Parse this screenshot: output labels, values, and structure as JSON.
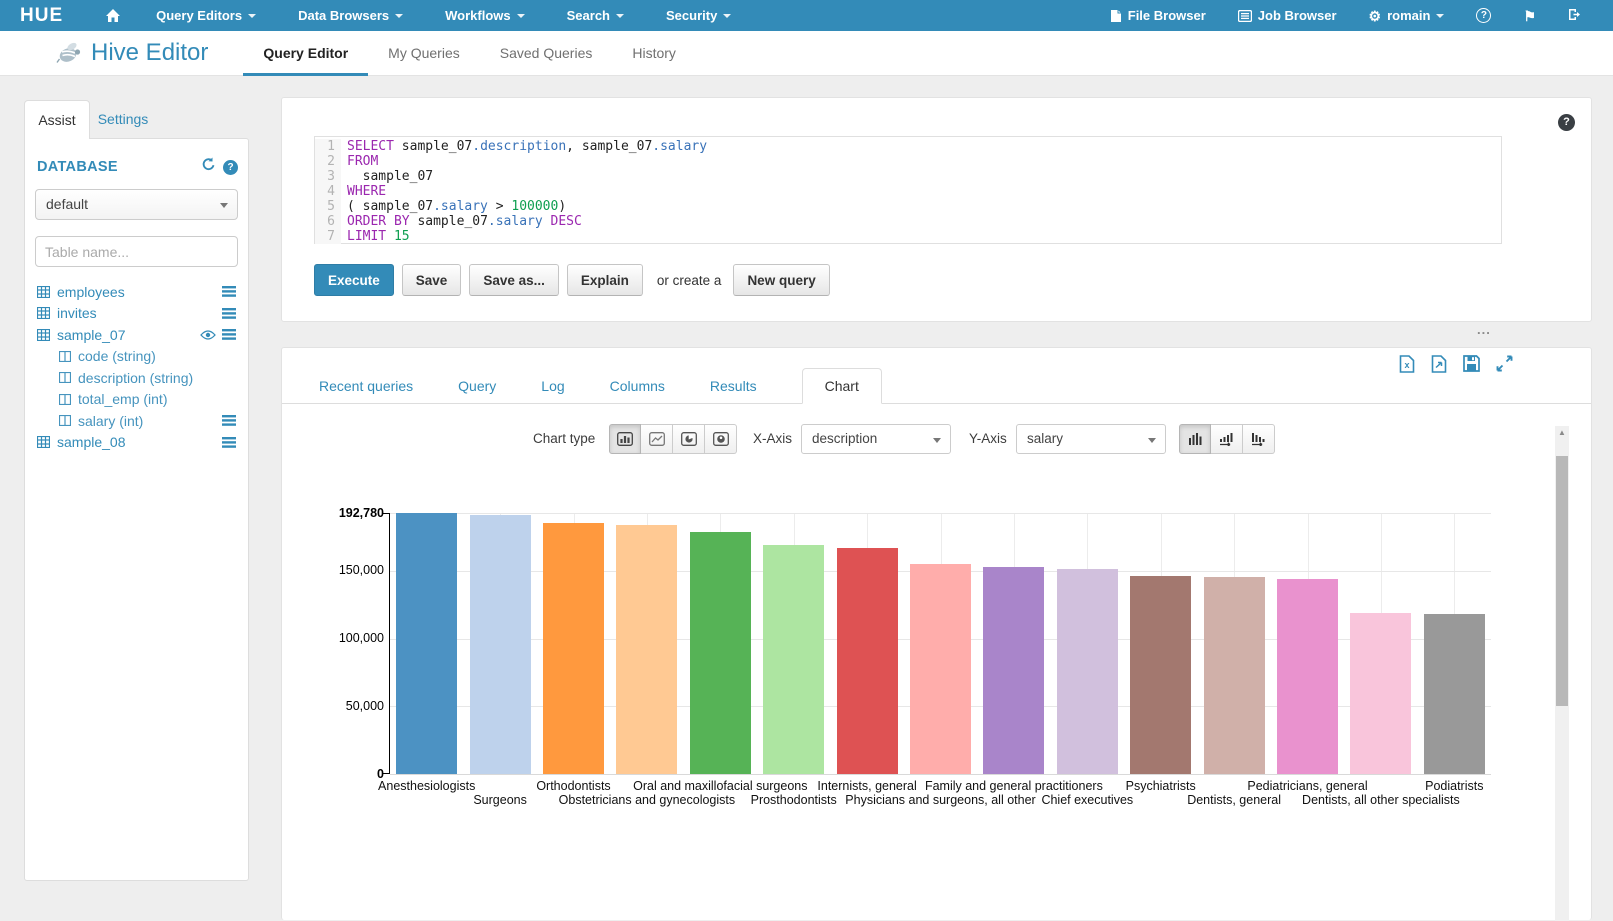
{
  "navbar": {
    "logo": "HUE",
    "menus": [
      "Query Editors",
      "Data Browsers",
      "Workflows",
      "Search",
      "Security"
    ],
    "file_browser": "File Browser",
    "job_browser": "Job Browser",
    "user": "romain"
  },
  "icons": {
    "help_glyph": "?",
    "gear_glyph": "⚙",
    "flag_glyph": "⚑",
    "scroll_up_glyph": "▲",
    "grip_glyph": "..."
  },
  "subheader": {
    "app_title": "Hive Editor",
    "tabs": [
      "Query Editor",
      "My Queries",
      "Saved Queries",
      "History"
    ],
    "active_tab": "Query Editor"
  },
  "assist": {
    "tabs": [
      "Assist",
      "Settings"
    ],
    "database_label": "DATABASE",
    "database_value": "default",
    "table_filter_placeholder": "Table name...",
    "tables": [
      {
        "name": "employees"
      },
      {
        "name": "invites"
      },
      {
        "name": "sample_07",
        "columns": [
          "code (string)",
          "description (string)",
          "total_emp (int)",
          "salary (int)"
        ]
      },
      {
        "name": "sample_08"
      }
    ]
  },
  "editor": {
    "lines": [
      [
        [
          "kw",
          "SELECT"
        ],
        [
          "pl",
          " sample_07"
        ],
        [
          "pr",
          ".description"
        ],
        [
          "pl",
          ", sample_07"
        ],
        [
          "pr",
          ".salary"
        ]
      ],
      [
        [
          "kw",
          "FROM"
        ]
      ],
      [
        [
          "pl",
          "  sample_07"
        ]
      ],
      [
        [
          "kw",
          "WHERE"
        ]
      ],
      [
        [
          "pl",
          "( sample_07"
        ],
        [
          "pr",
          ".salary"
        ],
        [
          "pl",
          " > "
        ],
        [
          "nu",
          "100000"
        ],
        [
          "pl",
          ")"
        ]
      ],
      [
        [
          "kw",
          "ORDER BY"
        ],
        [
          "pl",
          " sample_07"
        ],
        [
          "pr",
          ".salary"
        ],
        [
          "pl",
          " "
        ],
        [
          "kw",
          "DESC"
        ]
      ],
      [
        [
          "kw",
          "LIMIT"
        ],
        [
          "pl",
          " "
        ],
        [
          "nu",
          "15"
        ]
      ]
    ]
  },
  "toolbar": {
    "execute": "Execute",
    "save": "Save",
    "save_as": "Save as...",
    "explain": "Explain",
    "or_create": "or create a",
    "new_query": "New query"
  },
  "results": {
    "tabs": [
      "Recent queries",
      "Query",
      "Log",
      "Columns",
      "Results",
      "Chart"
    ],
    "active_tab": "Chart",
    "controls": {
      "chart_type_label": "Chart type",
      "x_axis_label": "X-Axis",
      "x_axis_value": "description",
      "y_axis_label": "Y-Axis",
      "y_axis_value": "salary"
    }
  },
  "colors": {
    "brand_blue": "#338bb8",
    "keyword_purple": "#9b27af",
    "property_blue": "#3972b8",
    "number_green": "#0e9e50"
  },
  "chart_data": {
    "type": "bar",
    "title": "",
    "xlabel": "description",
    "ylabel": "salary",
    "ylim": [
      0,
      192780
    ],
    "grid": true,
    "legend": "none",
    "yticks": [
      {
        "value": 0,
        "label": "0",
        "bold": true,
        "grid": false
      },
      {
        "value": 50000,
        "label": "50,000",
        "bold": false,
        "grid": true
      },
      {
        "value": 100000,
        "label": "100,000",
        "bold": false,
        "grid": true
      },
      {
        "value": 150000,
        "label": "150,000",
        "bold": false,
        "grid": true
      },
      {
        "value": 192780,
        "label": "192,780",
        "bold": true,
        "grid": true
      }
    ],
    "categories": [
      "Anesthesiologists",
      "Surgeons",
      "Orthodontists",
      "Obstetricians and gynecologists",
      "Oral and maxillofacial surgeons",
      "Prosthodontists",
      "Internists, general",
      "Physicians and surgeons, all other",
      "Family and general practitioners",
      "Chief executives",
      "Psychiatrists",
      "Dentists, general",
      "Pediatricians, general",
      "Dentists, all other specialists",
      "Podiatrists"
    ],
    "values": [
      192780,
      191410,
      185340,
      183600,
      178440,
      169360,
      167270,
      155150,
      153000,
      151370,
      146200,
      145300,
      143800,
      118900,
      118500
    ],
    "colors": [
      "#4c92c3",
      "#bed2ec",
      "#ff993e",
      "#ffc993",
      "#56b356",
      "#ade5a1",
      "#de5253",
      "#ffadab",
      "#a985ca",
      "#d1c0dd",
      "#a3786f",
      "#d0b0a9",
      "#e992ce",
      "#f9c5db",
      "#999999"
    ]
  }
}
